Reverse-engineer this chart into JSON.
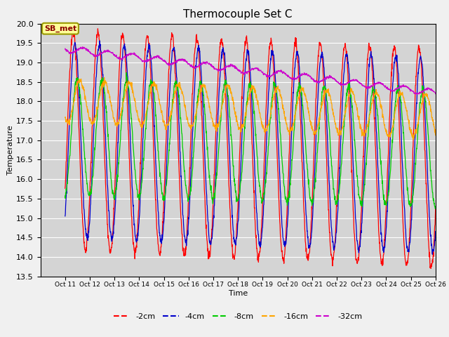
{
  "title": "Thermocouple Set C",
  "xlabel": "Time",
  "ylabel": "Temperature",
  "ylim": [
    13.5,
    20.0
  ],
  "xlim_days": [
    10,
    26
  ],
  "fig_facecolor": "#f0f0f0",
  "plot_facecolor": "#d4d4d4",
  "colors": {
    "-2cm": "#ff0000",
    "-4cm": "#0000cc",
    "-8cm": "#00cc00",
    "-16cm": "#ffa500",
    "-32cm": "#cc00cc"
  },
  "legend_label": "SB_met",
  "legend_box_facecolor": "#ffff99",
  "legend_box_edgecolor": "#999900",
  "tick_positions": [
    11,
    12,
    13,
    14,
    15,
    16,
    17,
    18,
    19,
    20,
    21,
    22,
    23,
    24,
    25,
    26
  ],
  "tick_labels": [
    "Oct 11",
    "Oct 12",
    "Oct 13",
    "Oct 14",
    "Oct 15",
    "Oct 16",
    "Oct 17",
    "Oct 18",
    "Oct 19",
    "Oct 20",
    "Oct 21",
    "Oct 22",
    "Oct 23",
    "Oct 24",
    "Oct 25",
    "Oct 26"
  ]
}
